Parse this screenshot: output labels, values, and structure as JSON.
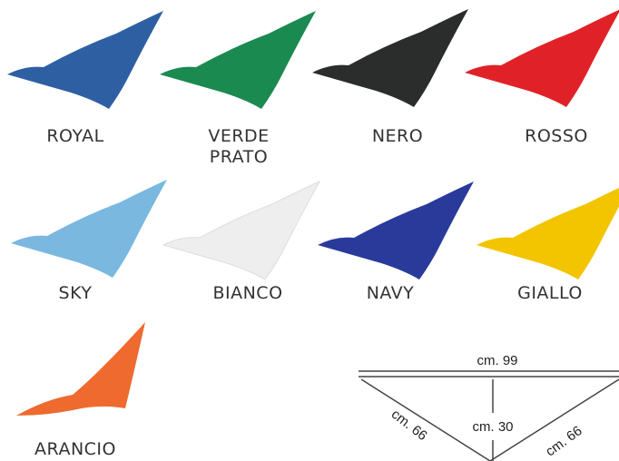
{
  "swatches": [
    {
      "label": "ROYAL"
    },
    {
      "label": "VERDE PRATO"
    },
    {
      "label": "NERO"
    },
    {
      "label": "ROSSO"
    },
    {
      "label": "SKY"
    },
    {
      "label": "BIANCO"
    },
    {
      "label": "NAVY"
    },
    {
      "label": "GIALLO"
    },
    {
      "label": "ARANCIO"
    }
  ],
  "dimensions": {
    "width": "cm. 99",
    "height": "cm. 30",
    "left_side": "cm. 66",
    "right_side": "cm. 66"
  }
}
